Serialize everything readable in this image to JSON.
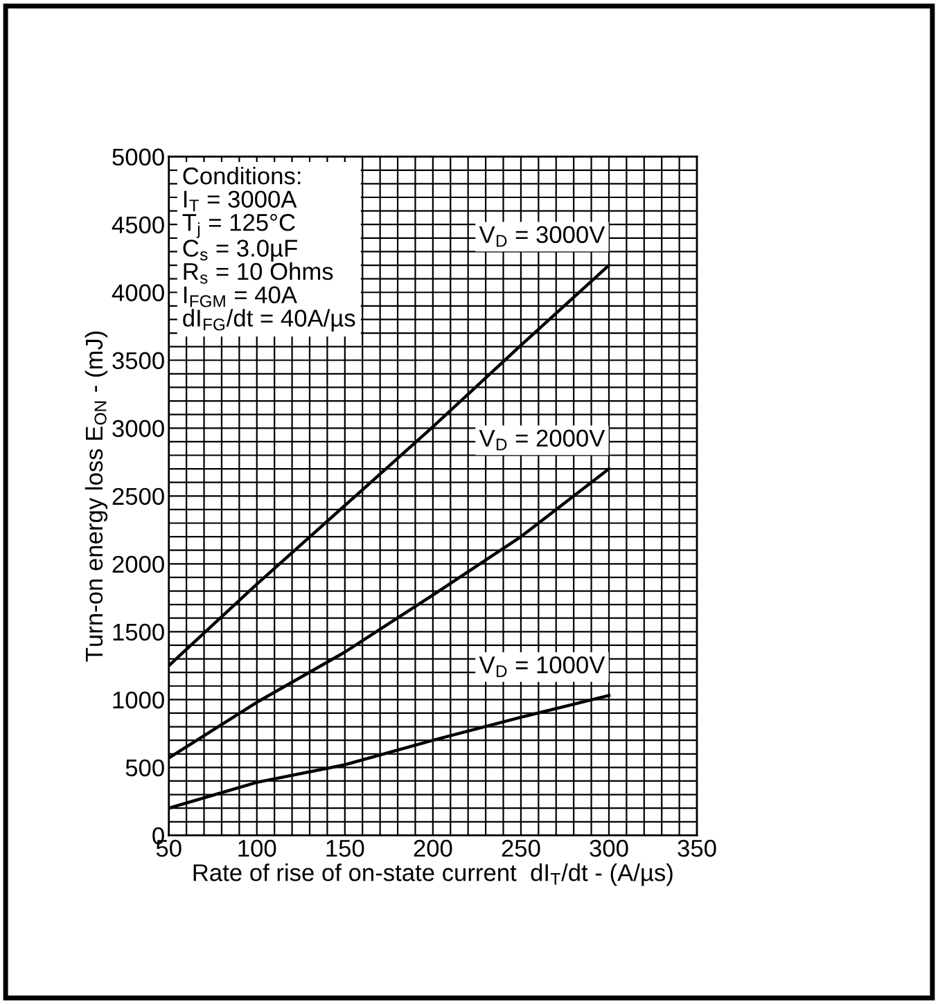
{
  "chart_data": {
    "type": "line",
    "xlabel": "Rate of rise of on-state current  dI$_{T}$/dt - (A/µs)",
    "ylabel": "Turn-on energy loss E$_{ON}$ - (mJ)",
    "x": [
      50,
      100,
      150,
      200,
      250,
      300
    ],
    "series": [
      {
        "name": "V$_{D}$ = 3000V",
        "color": "#000000",
        "values": [
          1250,
          1850,
          2430,
          3010,
          3610,
          4200
        ]
      },
      {
        "name": "V$_{D}$ = 2000V",
        "color": "#000000",
        "values": [
          570,
          980,
          1350,
          1770,
          2200,
          2700
        ]
      },
      {
        "name": "V$_{D}$ = 1000V",
        "color": "#000000",
        "values": [
          200,
          390,
          520,
          700,
          870,
          1030
        ]
      }
    ],
    "xlim": [
      50,
      350
    ],
    "ylim": [
      0,
      5000
    ],
    "xticks": [
      50,
      {
        "value": 60,
        "label": null
      },
      {
        "value": 70,
        "label": null
      },
      {
        "value": 80,
        "label": null
      },
      {
        "value": 90,
        "label": null
      },
      100,
      {
        "value": 110,
        "label": null
      },
      {
        "value": 120,
        "label": null
      },
      {
        "value": 130,
        "label": null
      },
      {
        "value": 140,
        "label": null
      },
      150,
      {
        "value": 160,
        "label": null
      },
      {
        "value": 170,
        "label": null
      },
      {
        "value": 180,
        "label": null
      },
      {
        "value": 190,
        "label": null
      },
      200,
      {
        "value": 210,
        "label": null
      },
      {
        "value": 220,
        "label": null
      },
      {
        "value": 230,
        "label": null
      },
      {
        "value": 240,
        "label": null
      },
      250,
      {
        "value": 260,
        "label": null
      },
      {
        "value": 270,
        "label": null
      },
      {
        "value": 280,
        "label": null
      },
      {
        "value": 290,
        "label": null
      },
      300,
      {
        "value": 310,
        "label": null
      },
      {
        "value": 320,
        "label": null
      },
      {
        "value": 330,
        "label": null
      },
      {
        "value": 340,
        "label": null
      },
      350
    ],
    "yticks": [
      0,
      {
        "value": 100,
        "label": null
      },
      {
        "value": 200,
        "label": null
      },
      {
        "value": 300,
        "label": null
      },
      {
        "value": 400,
        "label": null
      },
      500,
      {
        "value": 600,
        "label": null
      },
      {
        "value": 700,
        "label": null
      },
      {
        "value": 800,
        "label": null
      },
      {
        "value": 900,
        "label": null
      },
      1000,
      {
        "value": 1100,
        "label": null
      },
      {
        "value": 1200,
        "label": null
      },
      {
        "value": 1300,
        "label": null
      },
      {
        "value": 1400,
        "label": null
      },
      1500,
      {
        "value": 1600,
        "label": null
      },
      {
        "value": 1700,
        "label": null
      },
      {
        "value": 1800,
        "label": null
      },
      {
        "value": 1900,
        "label": null
      },
      2000,
      {
        "value": 2100,
        "label": null
      },
      {
        "value": 2200,
        "label": null
      },
      {
        "value": 2300,
        "label": null
      },
      {
        "value": 2400,
        "label": null
      },
      2500,
      {
        "value": 2600,
        "label": null
      },
      {
        "value": 2700,
        "label": null
      },
      {
        "value": 2800,
        "label": null
      },
      {
        "value": 2900,
        "label": null
      },
      3000,
      {
        "value": 3100,
        "label": null
      },
      {
        "value": 3200,
        "label": null
      },
      {
        "value": 3300,
        "label": null
      },
      {
        "value": 3400,
        "label": null
      },
      3500,
      {
        "value": 3600,
        "label": null
      },
      {
        "value": 3700,
        "label": null
      },
      {
        "value": 3800,
        "label": null
      },
      {
        "value": 3900,
        "label": null
      },
      4000,
      {
        "value": 4100,
        "label": null
      },
      {
        "value": 4200,
        "label": null
      },
      {
        "value": 4300,
        "label": null
      },
      {
        "value": 4400,
        "label": null
      },
      4500,
      {
        "value": 4600,
        "label": null
      },
      {
        "value": 4700,
        "label": null
      },
      {
        "value": 4800,
        "label": null
      },
      {
        "value": 4900,
        "label": null
      },
      5000
    ],
    "grid": true,
    "legend": false,
    "marker": "none",
    "line_style": "solid",
    "annotations": [
      "Conditions:\nI$_{T}$ = 3000A\nT$_{j}$ = 125°C\nC$_{s}$ = 3.0µF\nR$_{s}$ = 10 Ohms\nI$_{FGM}$ = 40A\ndI$_{FG}$/dt = 40A/µs"
    ]
  }
}
